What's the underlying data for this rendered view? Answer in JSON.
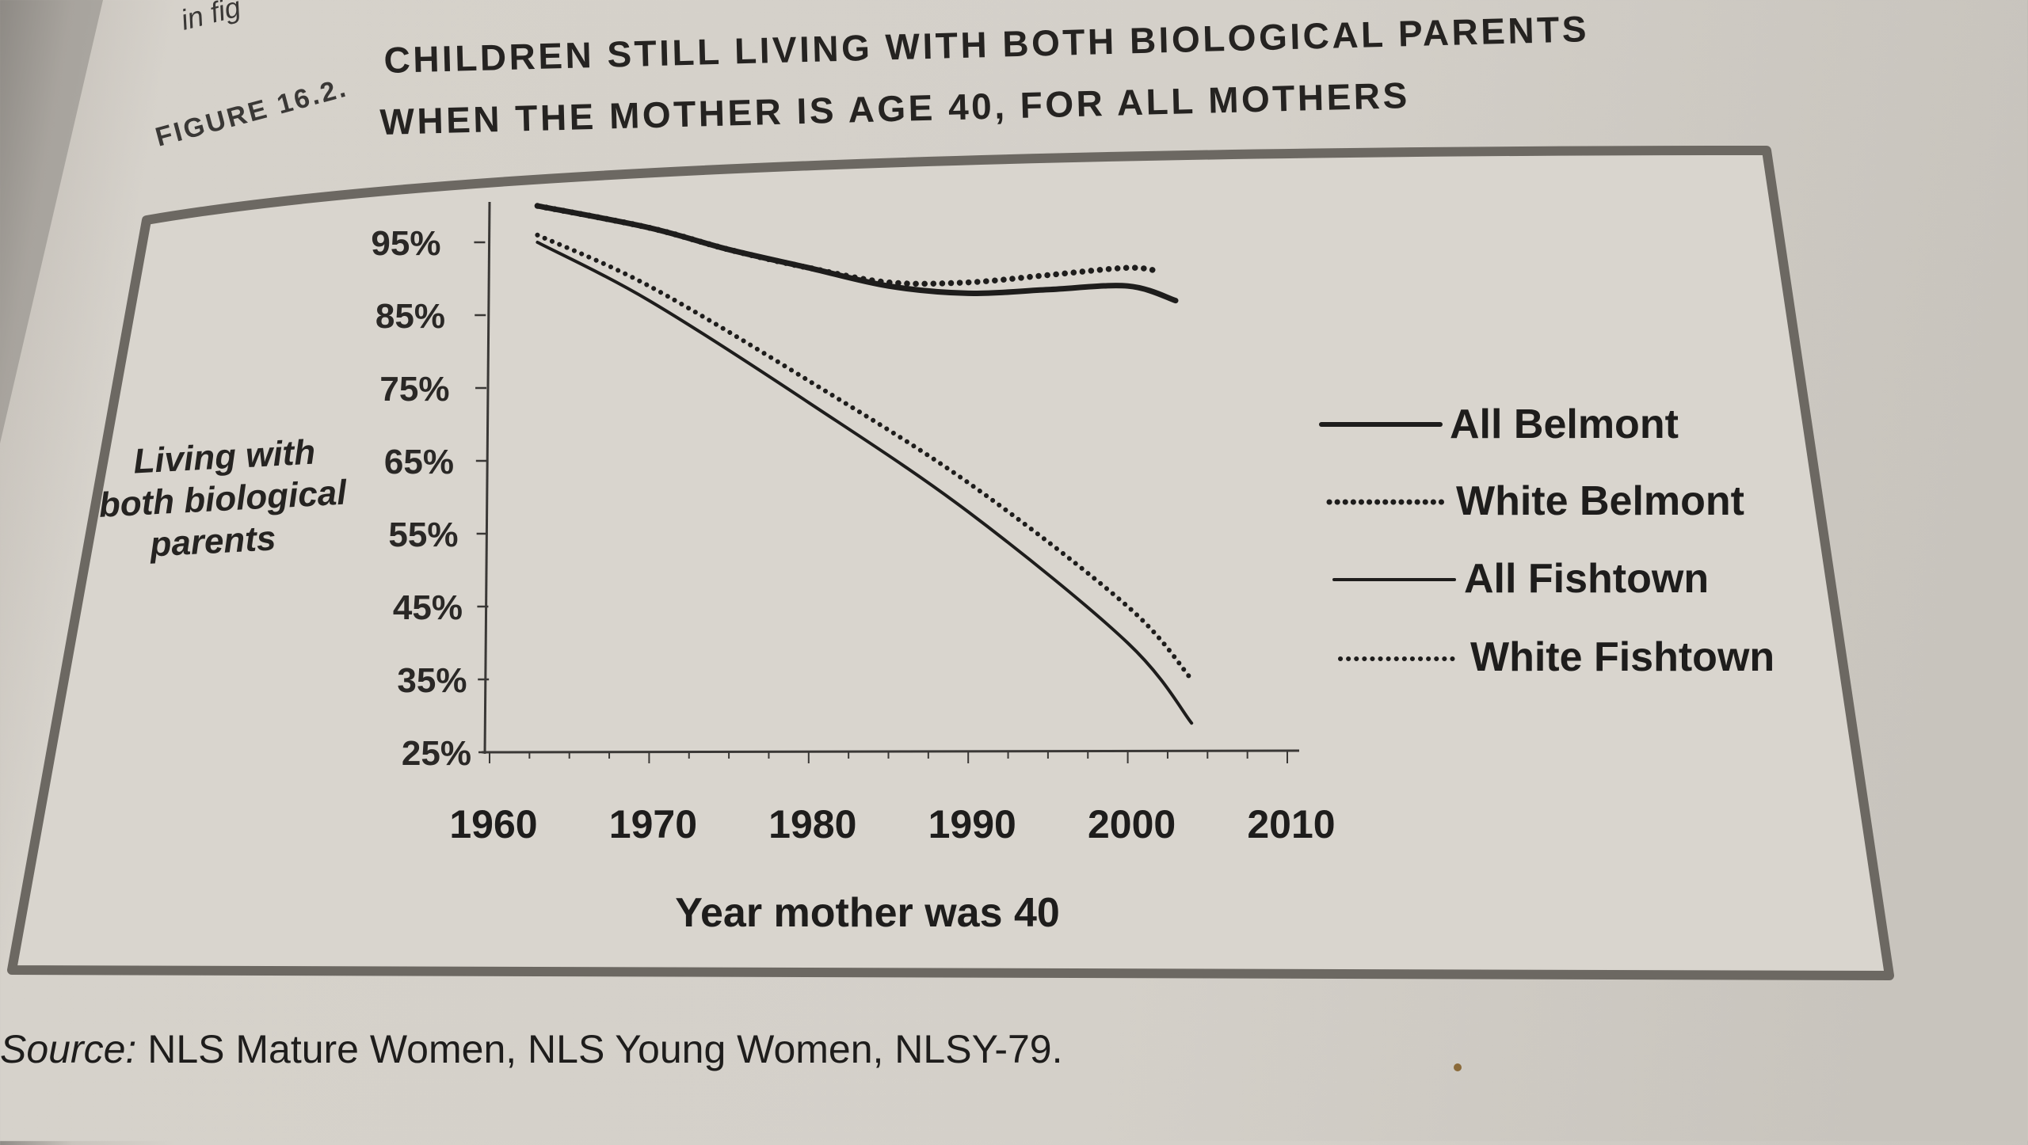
{
  "figure": {
    "corner_text": "in fig",
    "label": "FIGURE 16.2.",
    "title_line1": "CHILDREN STILL LIVING WITH BOTH BIOLOGICAL PARENTS",
    "title_line2": "WHEN THE MOTHER IS AGE 40, FOR ALL MOTHERS"
  },
  "source": {
    "prefix": "Source:",
    "text": " NLS Mature Women, NLS Young Women, NLSY-79."
  },
  "chart_data": {
    "type": "line",
    "title": "CHILDREN STILL LIVING WITH BOTH BIOLOGICAL PARENTS WHEN THE MOTHER IS AGE 40, FOR ALL MOTHERS",
    "ylabel_lines": [
      "Living with",
      "both biological",
      "parents"
    ],
    "xlabel": "Year mother was 40",
    "xlim": [
      1960,
      2010
    ],
    "ylim": [
      25,
      100
    ],
    "x_ticks": [
      1960,
      1970,
      1980,
      1990,
      2000,
      2010
    ],
    "x_tick_labels": [
      "1960",
      "1970",
      "1980",
      "1990",
      "2000",
      "2010"
    ],
    "y_ticks": [
      25,
      35,
      45,
      55,
      65,
      75,
      85,
      95
    ],
    "y_tick_labels": [
      "25%",
      "35%",
      "45%",
      "55%",
      "65%",
      "75%",
      "85%",
      "95%"
    ],
    "legend_position": "right",
    "series": [
      {
        "name": "All Belmont",
        "style": "solid",
        "weight": "thick",
        "x": [
          1963,
          1970,
          1975,
          1980,
          1985,
          1990,
          1995,
          2000,
          2003
        ],
        "y": [
          100,
          97,
          94,
          91.5,
          89,
          88,
          88.5,
          89,
          87
        ]
      },
      {
        "name": "White Belmont",
        "style": "dotted",
        "weight": "thick",
        "x": [
          1963,
          1970,
          1975,
          1980,
          1985,
          1990,
          1995,
          2000,
          2002
        ],
        "y": [
          100,
          97,
          94,
          91.5,
          89.5,
          89.5,
          90.5,
          91.5,
          91
        ]
      },
      {
        "name": "All Fishtown",
        "style": "solid",
        "weight": "thin",
        "x": [
          1963,
          1970,
          1980,
          1990,
          2000,
          2004
        ],
        "y": [
          95,
          87,
          73,
          58,
          40,
          29
        ]
      },
      {
        "name": "White Fishtown",
        "style": "dotted",
        "weight": "thin",
        "x": [
          1963,
          1970,
          1980,
          1990,
          2000,
          2004
        ],
        "y": [
          96,
          89,
          76,
          62,
          45,
          35
        ]
      }
    ]
  },
  "colors": {
    "ink": "#1e1d1c",
    "frame": "#706c66",
    "paper": "#d4d0c9"
  }
}
